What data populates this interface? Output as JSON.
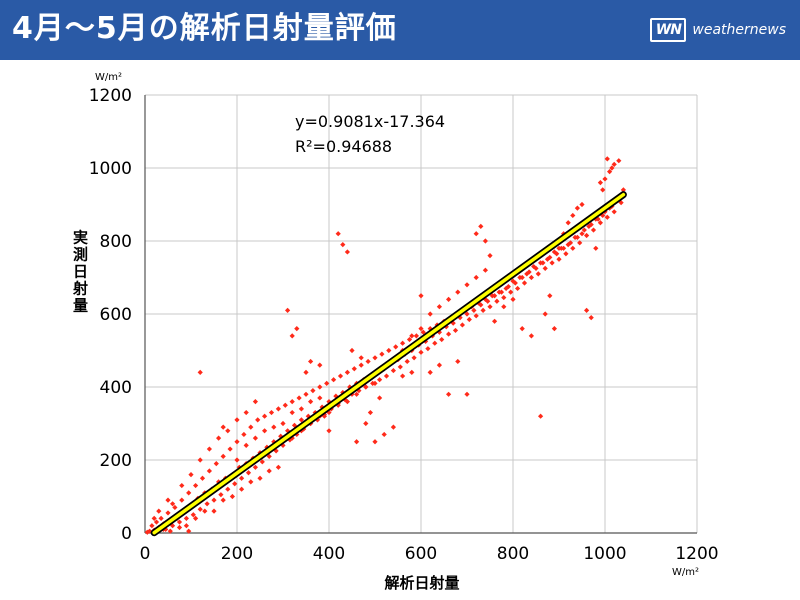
{
  "header": {
    "title": "4月〜5月の解析日射量評価",
    "brand_logo": "WN",
    "brand_name": "weathernews",
    "background_color": "#2a5aa6"
  },
  "chart_data": {
    "type": "scatter",
    "title": "4月〜5月の解析日射量評価",
    "xlabel": "解析日射量",
    "ylabel": "実測日射量",
    "x_unit": "W/m²",
    "y_unit": "W/m²",
    "xlim": [
      0,
      1200
    ],
    "ylim": [
      0,
      1200
    ],
    "x_ticks": [
      "0",
      "200",
      "400",
      "600",
      "800",
      "1000",
      "1200"
    ],
    "y_ticks": [
      "0",
      "200",
      "400",
      "600",
      "800",
      "1000",
      "1200"
    ],
    "grid": true,
    "point_color": "#ff2a1a",
    "regression": {
      "slope": 0.9081,
      "intercept": -17.364,
      "x_range": [
        20,
        1040
      ],
      "equation_label": "y=0.9081x-17.364",
      "r2_label": "R²=0.94688",
      "line_color": "#ffff00",
      "outline_color": "#000000"
    },
    "series": [
      {
        "points": [
          [
            10,
            5
          ],
          [
            15,
            20
          ],
          [
            20,
            8
          ],
          [
            25,
            30
          ],
          [
            30,
            15
          ],
          [
            35,
            40
          ],
          [
            40,
            25
          ],
          [
            45,
            10
          ],
          [
            50,
            55
          ],
          [
            55,
            35
          ],
          [
            60,
            20
          ],
          [
            65,
            70
          ],
          [
            70,
            45
          ],
          [
            75,
            30
          ],
          [
            80,
            90
          ],
          [
            85,
            60
          ],
          [
            90,
            40
          ],
          [
            95,
            110
          ],
          [
            100,
            75
          ],
          [
            105,
            50
          ],
          [
            110,
            130
          ],
          [
            115,
            95
          ],
          [
            120,
            65
          ],
          [
            125,
            150
          ],
          [
            130,
            110
          ],
          [
            135,
            80
          ],
          [
            140,
            170
          ],
          [
            145,
            120
          ],
          [
            150,
            90
          ],
          [
            155,
            190
          ],
          [
            160,
            140
          ],
          [
            165,
            105
          ],
          [
            170,
            210
          ],
          [
            175,
            150
          ],
          [
            180,
            120
          ],
          [
            185,
            230
          ],
          [
            190,
            160
          ],
          [
            195,
            135
          ],
          [
            200,
            250
          ],
          [
            205,
            180
          ],
          [
            210,
            150
          ],
          [
            215,
            270
          ],
          [
            220,
            190
          ],
          [
            225,
            165
          ],
          [
            230,
            290
          ],
          [
            235,
            205
          ],
          [
            240,
            180
          ],
          [
            245,
            310
          ],
          [
            250,
            220
          ],
          [
            255,
            195
          ],
          [
            260,
            320
          ],
          [
            265,
            235
          ],
          [
            270,
            210
          ],
          [
            275,
            330
          ],
          [
            280,
            250
          ],
          [
            285,
            225
          ],
          [
            290,
            340
          ],
          [
            295,
            265
          ],
          [
            300,
            240
          ],
          [
            305,
            350
          ],
          [
            310,
            280
          ],
          [
            315,
            255
          ],
          [
            320,
            360
          ],
          [
            325,
            295
          ],
          [
            330,
            270
          ],
          [
            335,
            370
          ],
          [
            340,
            310
          ],
          [
            345,
            285
          ],
          [
            350,
            380
          ],
          [
            355,
            320
          ],
          [
            360,
            300
          ],
          [
            365,
            390
          ],
          [
            370,
            330
          ],
          [
            375,
            310
          ],
          [
            380,
            400
          ],
          [
            385,
            345
          ],
          [
            390,
            325
          ],
          [
            395,
            410
          ],
          [
            400,
            360
          ],
          [
            405,
            340
          ],
          [
            410,
            420
          ],
          [
            415,
            375
          ],
          [
            420,
            355
          ],
          [
            425,
            430
          ],
          [
            430,
            385
          ],
          [
            435,
            365
          ],
          [
            440,
            440
          ],
          [
            445,
            400
          ],
          [
            450,
            380
          ],
          [
            455,
            450
          ],
          [
            460,
            410
          ],
          [
            465,
            390
          ],
          [
            470,
            460
          ],
          [
            475,
            420
          ],
          [
            480,
            400
          ],
          [
            485,
            470
          ],
          [
            490,
            430
          ],
          [
            495,
            410
          ],
          [
            500,
            480
          ],
          [
            505,
            440
          ],
          [
            510,
            420
          ],
          [
            515,
            490
          ],
          [
            520,
            450
          ],
          [
            525,
            430
          ],
          [
            530,
            500
          ],
          [
            535,
            465
          ],
          [
            540,
            445
          ],
          [
            545,
            510
          ],
          [
            550,
            475
          ],
          [
            555,
            455
          ],
          [
            560,
            520
          ],
          [
            565,
            490
          ],
          [
            570,
            470
          ],
          [
            575,
            530
          ],
          [
            580,
            500
          ],
          [
            585,
            480
          ],
          [
            590,
            540
          ],
          [
            595,
            515
          ],
          [
            600,
            495
          ],
          [
            605,
            550
          ],
          [
            610,
            525
          ],
          [
            615,
            505
          ],
          [
            620,
            560
          ],
          [
            625,
            540
          ],
          [
            630,
            520
          ],
          [
            635,
            570
          ],
          [
            640,
            550
          ],
          [
            645,
            530
          ],
          [
            650,
            580
          ],
          [
            655,
            565
          ],
          [
            660,
            545
          ],
          [
            665,
            590
          ],
          [
            670,
            575
          ],
          [
            675,
            555
          ],
          [
            680,
            600
          ],
          [
            685,
            590
          ],
          [
            690,
            570
          ],
          [
            695,
            610
          ],
          [
            700,
            600
          ],
          [
            705,
            585
          ],
          [
            710,
            620
          ],
          [
            715,
            610
          ],
          [
            720,
            595
          ],
          [
            725,
            630
          ],
          [
            730,
            625
          ],
          [
            735,
            610
          ],
          [
            740,
            640
          ],
          [
            745,
            635
          ],
          [
            750,
            620
          ],
          [
            755,
            650
          ],
          [
            760,
            650
          ],
          [
            765,
            635
          ],
          [
            770,
            660
          ],
          [
            775,
            660
          ],
          [
            780,
            645
          ],
          [
            785,
            670
          ],
          [
            790,
            675
          ],
          [
            795,
            660
          ],
          [
            800,
            690
          ],
          [
            805,
            685
          ],
          [
            810,
            670
          ],
          [
            815,
            700
          ],
          [
            820,
            700
          ],
          [
            825,
            685
          ],
          [
            830,
            710
          ],
          [
            835,
            715
          ],
          [
            840,
            700
          ],
          [
            845,
            730
          ],
          [
            850,
            725
          ],
          [
            855,
            710
          ],
          [
            860,
            740
          ],
          [
            865,
            740
          ],
          [
            870,
            725
          ],
          [
            875,
            750
          ],
          [
            880,
            755
          ],
          [
            885,
            740
          ],
          [
            890,
            770
          ],
          [
            895,
            765
          ],
          [
            900,
            750
          ],
          [
            905,
            780
          ],
          [
            910,
            780
          ],
          [
            915,
            765
          ],
          [
            920,
            790
          ],
          [
            925,
            795
          ],
          [
            930,
            780
          ],
          [
            935,
            810
          ],
          [
            940,
            810
          ],
          [
            945,
            795
          ],
          [
            950,
            820
          ],
          [
            955,
            830
          ],
          [
            960,
            815
          ],
          [
            965,
            840
          ],
          [
            970,
            845
          ],
          [
            975,
            830
          ],
          [
            980,
            860
          ],
          [
            985,
            860
          ],
          [
            990,
            850
          ],
          [
            995,
            870
          ],
          [
            1000,
            880
          ],
          [
            1005,
            865
          ],
          [
            1010,
            890
          ],
          [
            1015,
            895
          ],
          [
            1020,
            880
          ],
          [
            1025,
            910
          ],
          [
            1030,
            920
          ],
          [
            1035,
            905
          ],
          [
            1040,
            940
          ],
          [
            60,
            80
          ],
          [
            80,
            130
          ],
          [
            100,
            160
          ],
          [
            120,
            200
          ],
          [
            140,
            230
          ],
          [
            160,
            260
          ],
          [
            180,
            280
          ],
          [
            200,
            310
          ],
          [
            220,
            330
          ],
          [
            240,
            360
          ],
          [
            110,
            40
          ],
          [
            130,
            60
          ],
          [
            150,
            60
          ],
          [
            170,
            90
          ],
          [
            190,
            100
          ],
          [
            210,
            120
          ],
          [
            230,
            140
          ],
          [
            250,
            150
          ],
          [
            270,
            170
          ],
          [
            290,
            180
          ],
          [
            320,
            260
          ],
          [
            340,
            280
          ],
          [
            360,
            300
          ],
          [
            380,
            320
          ],
          [
            400,
            330
          ],
          [
            420,
            350
          ],
          [
            440,
            360
          ],
          [
            460,
            380
          ],
          [
            480,
            400
          ],
          [
            500,
            410
          ],
          [
            120,
            440
          ],
          [
            170,
            290
          ],
          [
            310,
            610
          ],
          [
            320,
            540
          ],
          [
            330,
            560
          ],
          [
            350,
            440
          ],
          [
            360,
            470
          ],
          [
            380,
            460
          ],
          [
            390,
            320
          ],
          [
            400,
            280
          ],
          [
            420,
            820
          ],
          [
            430,
            790
          ],
          [
            440,
            770
          ],
          [
            450,
            500
          ],
          [
            460,
            250
          ],
          [
            470,
            480
          ],
          [
            480,
            300
          ],
          [
            490,
            330
          ],
          [
            500,
            250
          ],
          [
            510,
            370
          ],
          [
            520,
            270
          ],
          [
            540,
            290
          ],
          [
            560,
            430
          ],
          [
            580,
            440
          ],
          [
            600,
            650
          ],
          [
            620,
            440
          ],
          [
            640,
            460
          ],
          [
            660,
            380
          ],
          [
            680,
            470
          ],
          [
            700,
            380
          ],
          [
            720,
            820
          ],
          [
            730,
            840
          ],
          [
            740,
            800
          ],
          [
            750,
            760
          ],
          [
            760,
            580
          ],
          [
            780,
            620
          ],
          [
            800,
            640
          ],
          [
            820,
            560
          ],
          [
            840,
            540
          ],
          [
            860,
            320
          ],
          [
            870,
            600
          ],
          [
            880,
            650
          ],
          [
            890,
            560
          ],
          [
            900,
            780
          ],
          [
            910,
            820
          ],
          [
            920,
            850
          ],
          [
            930,
            870
          ],
          [
            940,
            890
          ],
          [
            950,
            900
          ],
          [
            960,
            610
          ],
          [
            970,
            590
          ],
          [
            980,
            780
          ],
          [
            990,
            960
          ],
          [
            1000,
            970
          ],
          [
            1010,
            990
          ],
          [
            1020,
            1010
          ],
          [
            1030,
            1020
          ],
          [
            1005,
            1025
          ],
          [
            1015,
            1000
          ],
          [
            995,
            940
          ],
          [
            30,
            60
          ],
          [
            50,
            90
          ],
          [
            70,
            40
          ],
          [
            90,
            20
          ],
          [
            40,
            10
          ],
          [
            20,
            40
          ],
          [
            55,
            5
          ],
          [
            75,
            15
          ],
          [
            95,
            5
          ],
          [
            5,
            2
          ],
          [
            200,
            200
          ],
          [
            220,
            240
          ],
          [
            240,
            260
          ],
          [
            260,
            280
          ],
          [
            280,
            290
          ],
          [
            300,
            300
          ],
          [
            320,
            330
          ],
          [
            340,
            340
          ],
          [
            360,
            360
          ],
          [
            380,
            370
          ],
          [
            560,
            500
          ],
          [
            580,
            540
          ],
          [
            600,
            560
          ],
          [
            620,
            600
          ],
          [
            640,
            620
          ],
          [
            660,
            640
          ],
          [
            680,
            660
          ],
          [
            700,
            680
          ],
          [
            720,
            700
          ],
          [
            740,
            720
          ]
        ]
      }
    ]
  }
}
